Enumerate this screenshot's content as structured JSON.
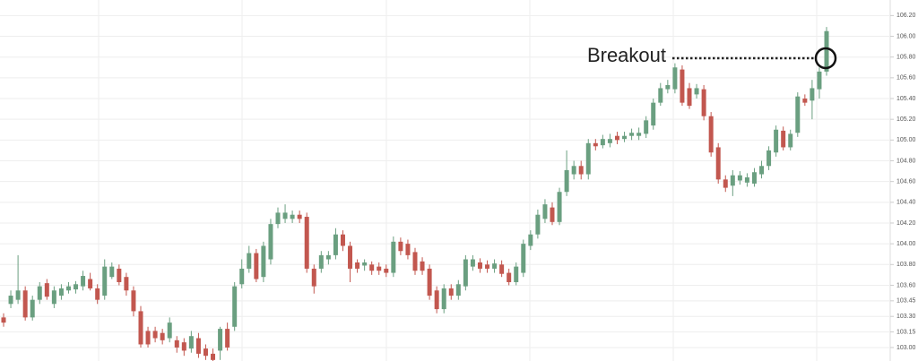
{
  "chart_data": {
    "type": "candlestick",
    "annotation": "Breakout",
    "up_color": "#6a9f80",
    "down_color": "#c2574f",
    "ylim": [
      102.87,
      106.35
    ],
    "yticks": [
      {
        "value": 106.2,
        "label": "106.20"
      },
      {
        "value": 106.0,
        "label": "106.00"
      },
      {
        "value": 105.8,
        "label": "105.80"
      },
      {
        "value": 105.6,
        "label": "105.60"
      },
      {
        "value": 105.4,
        "label": "105.40"
      },
      {
        "value": 105.2,
        "label": "105.20"
      },
      {
        "value": 105.0,
        "label": "105.00"
      },
      {
        "value": 104.8,
        "label": "104.80"
      },
      {
        "value": 104.6,
        "label": "104.60"
      },
      {
        "value": 104.4,
        "label": "104.40"
      },
      {
        "value": 104.2,
        "label": "104.20"
      },
      {
        "value": 104.0,
        "label": "104.00"
      },
      {
        "value": 103.8,
        "label": "103.80"
      },
      {
        "value": 103.6,
        "label": "103.60"
      },
      {
        "value": 103.45,
        "label": "103.45"
      },
      {
        "value": 103.3,
        "label": "103.30"
      },
      {
        "value": 103.15,
        "label": "103.15"
      },
      {
        "value": 103.0,
        "label": "103.00"
      }
    ],
    "grid": true,
    "open": [
      103.29,
      103.42,
      103.46,
      103.55,
      103.29,
      103.46,
      103.62,
      103.42,
      103.5,
      103.55,
      103.56,
      103.59,
      103.66,
      103.57,
      103.5,
      103.68,
      103.76,
      103.68,
      103.55,
      103.35,
      103.16,
      103.16,
      103.14,
      103.09,
      103.07,
      103.05,
      102.99,
      103.09,
      102.99,
      102.94,
      102.97,
      103.18,
      103.2,
      103.61,
      103.76,
      103.91,
      103.68,
      103.85,
      104.19,
      104.24,
      104.24,
      104.28,
      104.26,
      103.76,
      103.76,
      103.85,
      103.89,
      104.09,
      103.98,
      103.82,
      103.79,
      103.8,
      103.78,
      103.76,
      103.72,
      104.02,
      104.0,
      103.92,
      103.83,
      103.76,
      103.55,
      103.37,
      103.57,
      103.5,
      103.59,
      103.78,
      103.82,
      103.8,
      103.76,
      103.8,
      103.72,
      103.63,
      103.72,
      103.98,
      104.09,
      104.24,
      104.35,
      104.21,
      104.5,
      104.67,
      104.75,
      104.67,
      104.97,
      104.95,
      104.97,
      105.04,
      105.01,
      105.04,
      105.04,
      105.06,
      105.14,
      105.36,
      105.49,
      105.49,
      105.68,
      105.5,
      105.44,
      105.49,
      105.23,
      104.93,
      104.62,
      104.56,
      104.61,
      104.59,
      104.58,
      104.67,
      104.75,
      104.88,
      105.09,
      104.93,
      105.07,
      105.4,
      105.38,
      105.49,
      105.66
    ],
    "high": [
      103.33,
      103.55,
      103.89,
      103.59,
      103.5,
      103.63,
      103.66,
      103.59,
      103.61,
      103.63,
      103.64,
      103.74,
      103.72,
      103.61,
      103.85,
      103.82,
      103.8,
      103.72,
      103.59,
      103.4,
      103.2,
      103.2,
      103.18,
      103.29,
      103.11,
      103.09,
      103.16,
      103.14,
      103.03,
      102.99,
      103.2,
      103.24,
      103.63,
      103.85,
      103.98,
      103.95,
      104.02,
      104.24,
      104.35,
      104.38,
      104.32,
      104.32,
      104.3,
      103.8,
      103.93,
      103.93,
      104.15,
      104.13,
      104.02,
      103.85,
      103.85,
      103.83,
      103.82,
      103.8,
      104.07,
      104.06,
      104.04,
      103.96,
      103.87,
      103.8,
      103.59,
      103.61,
      103.61,
      103.65,
      103.89,
      103.89,
      103.86,
      103.84,
      103.85,
      103.84,
      103.76,
      103.82,
      104.04,
      104.13,
      104.33,
      104.43,
      104.4,
      104.54,
      104.9,
      104.8,
      104.8,
      105.01,
      105.01,
      105.05,
      105.06,
      105.08,
      105.08,
      105.11,
      105.12,
      105.23,
      105.4,
      105.55,
      105.58,
      105.74,
      105.72,
      105.55,
      105.54,
      105.53,
      105.27,
      104.97,
      104.66,
      104.71,
      104.7,
      104.68,
      104.73,
      104.8,
      104.94,
      105.14,
      105.13,
      105.1,
      105.46,
      105.44,
      105.58,
      105.7,
      106.09
    ],
    "low": [
      103.2,
      103.38,
      103.42,
      103.26,
      103.26,
      103.42,
      103.46,
      103.38,
      103.46,
      103.52,
      103.52,
      103.55,
      103.55,
      103.42,
      103.46,
      103.66,
      103.6,
      103.5,
      103.3,
      103.0,
      103.0,
      103.05,
      103.03,
      103.05,
      102.95,
      102.92,
      102.95,
      102.9,
      102.88,
      102.87,
      102.88,
      102.97,
      103.16,
      103.57,
      103.72,
      103.63,
      103.63,
      103.8,
      104.15,
      104.2,
      104.2,
      104.2,
      103.72,
      103.52,
      103.72,
      103.8,
      103.85,
      103.93,
      103.63,
      103.72,
      103.74,
      103.7,
      103.7,
      103.68,
      103.68,
      103.89,
      103.85,
      103.7,
      103.7,
      103.46,
      103.33,
      103.33,
      103.46,
      103.46,
      103.55,
      103.74,
      103.72,
      103.72,
      103.72,
      103.68,
      103.6,
      103.6,
      103.68,
      103.94,
      104.05,
      104.2,
      104.18,
      104.18,
      104.46,
      104.62,
      104.62,
      104.62,
      104.9,
      104.92,
      104.93,
      104.96,
      104.98,
      105.0,
      105.0,
      105.02,
      105.1,
      105.33,
      105.45,
      105.45,
      105.33,
      105.3,
      105.4,
      105.19,
      104.84,
      104.58,
      104.5,
      104.46,
      104.57,
      104.55,
      104.55,
      104.63,
      104.71,
      104.84,
      104.9,
      104.9,
      105.03,
      105.33,
      105.2,
      105.4,
      105.62
    ],
    "close": [
      103.24,
      103.5,
      103.55,
      103.29,
      103.46,
      103.59,
      103.49,
      103.55,
      103.57,
      103.59,
      103.61,
      103.69,
      103.57,
      103.46,
      103.78,
      103.78,
      103.63,
      103.55,
      103.35,
      103.03,
      103.03,
      103.09,
      103.07,
      103.24,
      103.0,
      102.97,
      103.11,
      102.94,
      102.92,
      102.88,
      103.18,
      103.0,
      103.59,
      103.76,
      103.91,
      103.66,
      103.98,
      104.19,
      104.3,
      104.3,
      104.28,
      104.24,
      103.76,
      103.59,
      103.89,
      103.89,
      104.09,
      103.98,
      103.76,
      103.76,
      103.82,
      103.74,
      103.74,
      103.72,
      104.02,
      103.93,
      103.89,
      103.74,
      103.74,
      103.5,
      103.37,
      103.57,
      103.5,
      103.61,
      103.85,
      103.85,
      103.76,
      103.76,
      103.81,
      103.71,
      103.63,
      103.78,
      104.0,
      104.09,
      104.28,
      104.38,
      104.21,
      104.5,
      104.71,
      104.75,
      104.67,
      104.97,
      104.94,
      105.01,
      105.01,
      105.0,
      105.04,
      105.07,
      105.07,
      105.19,
      105.36,
      105.5,
      105.53,
      105.7,
      105.36,
      105.33,
      105.5,
      105.23,
      104.88,
      104.62,
      104.54,
      104.66,
      104.66,
      104.64,
      104.69,
      104.75,
      104.9,
      105.1,
      104.93,
      105.06,
      105.42,
      105.36,
      105.5,
      105.66,
      106.05
    ]
  }
}
